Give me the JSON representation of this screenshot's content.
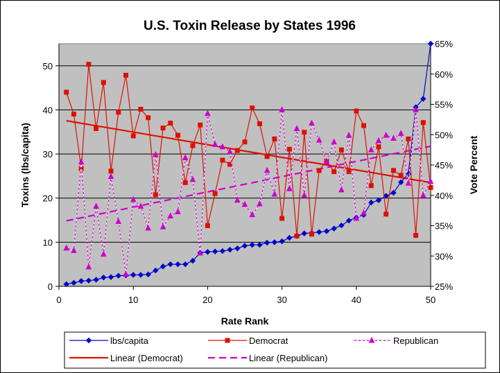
{
  "chart_data": {
    "type": "line",
    "title": "U.S. Toxin Release by States 1996",
    "xlabel": "Rate Rank",
    "ylabel": "Toxins (lbs/capita)",
    "y2label": "Vote Percent",
    "xlim": [
      0,
      50
    ],
    "ylim": [
      0,
      55
    ],
    "y2lim": [
      25,
      65
    ],
    "x_ticks": [
      0,
      10,
      20,
      30,
      40,
      50
    ],
    "y_ticks": [
      0,
      10,
      20,
      30,
      40,
      50
    ],
    "y2_ticks": [
      "25%",
      "30%",
      "35%",
      "40%",
      "45%",
      "50%",
      "55%",
      "60%",
      "65%"
    ],
    "y2_tick_values": [
      25,
      30,
      35,
      40,
      45,
      50,
      55,
      60,
      65
    ],
    "x": [
      1,
      2,
      3,
      4,
      5,
      6,
      7,
      8,
      9,
      10,
      11,
      12,
      13,
      14,
      15,
      16,
      17,
      18,
      19,
      20,
      21,
      22,
      23,
      24,
      25,
      26,
      27,
      28,
      29,
      30,
      31,
      32,
      33,
      34,
      35,
      36,
      37,
      38,
      39,
      40,
      41,
      42,
      43,
      44,
      45,
      46,
      47,
      48,
      49,
      50
    ],
    "series": [
      {
        "name": "lbs/capita",
        "axis": "left",
        "color": "#0000cc",
        "marker": "diamond",
        "values": [
          0.5,
          0.8,
          1.2,
          1.3,
          1.5,
          2.0,
          2.1,
          2.4,
          2.5,
          2.6,
          2.6,
          2.7,
          3.6,
          4.5,
          5.0,
          5.0,
          5.0,
          5.8,
          7.6,
          7.8,
          7.9,
          8.0,
          8.3,
          8.6,
          9.2,
          9.4,
          9.4,
          9.9,
          10.0,
          10.2,
          11.0,
          11.4,
          12.0,
          12.1,
          12.3,
          12.5,
          13.1,
          13.8,
          14.9,
          15.6,
          16.2,
          19.0,
          19.5,
          20.5,
          21.2,
          23.6,
          25.5,
          40.6,
          42.5,
          55.0
        ]
      },
      {
        "name": "Democrat",
        "axis": "right",
        "color": "#dd1100",
        "marker": "square",
        "values": [
          57.0,
          53.4,
          44.4,
          61.6,
          51.0,
          58.6,
          44.0,
          53.7,
          59.8,
          49.8,
          54.2,
          52.8,
          40.1,
          51.1,
          51.9,
          49.9,
          42.1,
          48.2,
          51.6,
          35.0,
          40.3,
          45.8,
          45.1,
          47.4,
          48.8,
          54.4,
          51.8,
          46.4,
          49.3,
          36.2,
          47.6,
          33.3,
          50.4,
          33.6,
          44.1,
          45.7,
          43.9,
          47.5,
          43.9,
          53.9,
          51.5,
          41.6,
          48.0,
          36.9,
          44.1,
          43.3,
          49.3,
          33.4,
          52.0,
          41.3
        ]
      },
      {
        "name": "Republican",
        "axis": "right",
        "color": "#cc00cc",
        "marker": "triangle",
        "values": [
          31.3,
          30.9,
          45.5,
          28.2,
          38.2,
          30.3,
          43.1,
          35.7,
          27.0,
          39.3,
          38.2,
          34.6,
          46.7,
          34.8,
          36.6,
          37.3,
          46.2,
          42.6,
          30.5,
          53.5,
          48.4,
          48.0,
          47.2,
          39.2,
          38.5,
          36.8,
          38.6,
          44.1,
          40.2,
          54.1,
          41.1,
          51.0,
          40.0,
          51.9,
          49.1,
          45.5,
          48.8,
          40.9,
          49.9,
          36.2,
          37.1,
          47.5,
          49.0,
          49.9,
          49.4,
          50.2,
          42.0,
          54.1,
          40.0,
          42.3
        ]
      },
      {
        "name": "Linear (Democrat)",
        "axis": "right",
        "color": "#dd1100",
        "style": "solid-trend",
        "x": [
          1,
          50
        ],
        "values": [
          52.3,
          42.1
        ]
      },
      {
        "name": "Linear (Republican)",
        "axis": "right",
        "color": "#cc00cc",
        "style": "dashed-trend",
        "x": [
          1,
          50
        ],
        "values": [
          35.8,
          48.1
        ]
      }
    ],
    "legend": {
      "placement": "bottom",
      "entries": [
        "lbs/capita",
        "Democrat",
        "Republican",
        "Linear (Democrat)",
        "Linear (Republican)"
      ]
    },
    "grid": "horizontal major on left axis",
    "plot_background": "#c0c0c0"
  }
}
